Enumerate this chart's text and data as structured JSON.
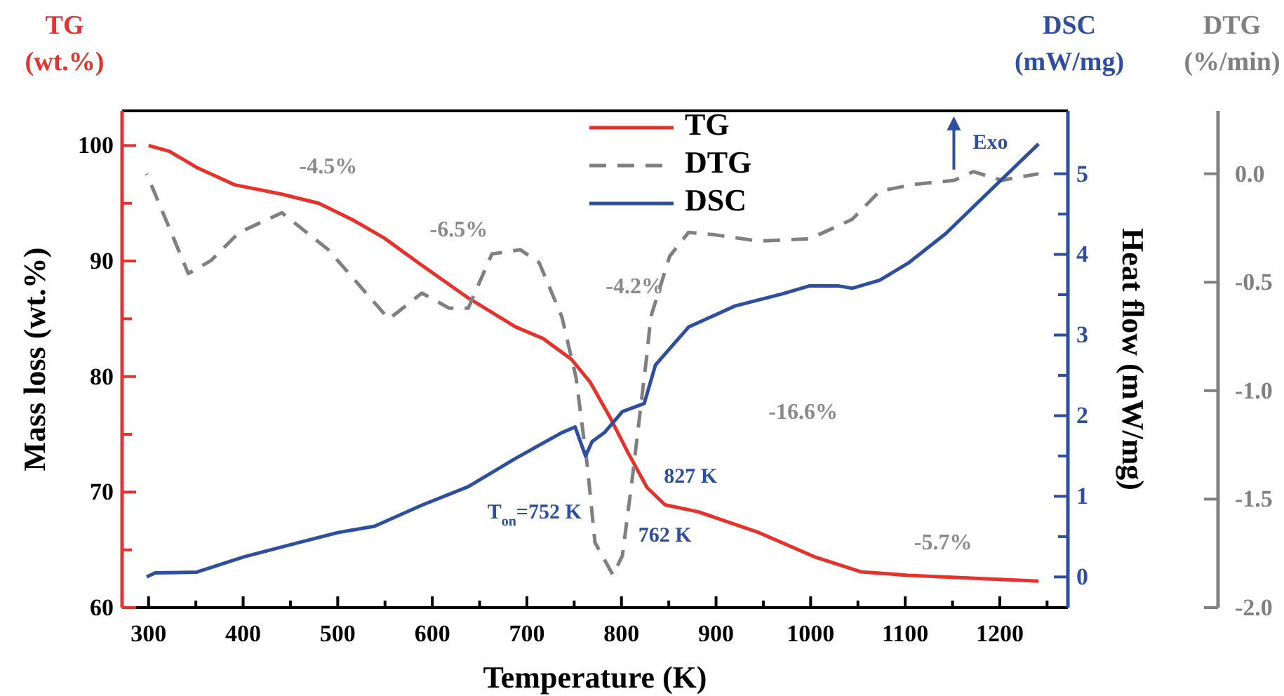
{
  "chart_data": {
    "type": "line",
    "xlabel": "Temperature (K)",
    "ylabel": "Mass loss (wt.%)",
    "y2label": "Heat flow (mW/mg)",
    "y3label": "DTG (%/min)",
    "xlim": [
      272,
      1272
    ],
    "xticks": [
      300,
      {
        "value": 350,
        "label": null
      },
      400,
      {
        "value": 450,
        "label": null
      },
      500,
      {
        "value": 550,
        "label": null
      },
      600,
      {
        "value": 650,
        "label": null
      },
      700,
      {
        "value": 750,
        "label": null
      },
      800,
      {
        "value": 850,
        "label": null
      },
      900,
      {
        "value": 950,
        "label": null
      },
      1000,
      {
        "value": 1050,
        "label": null
      },
      1100,
      {
        "value": 1150,
        "label": null
      },
      1200,
      {
        "value": 1250,
        "label": null
      }
    ],
    "ylim": [
      60,
      103
    ],
    "yticks": [
      60,
      {
        "value": 65,
        "label": null
      },
      70,
      {
        "value": 75,
        "label": null
      },
      80,
      {
        "value": 85,
        "label": null
      },
      90,
      {
        "value": 95,
        "label": null
      },
      100
    ],
    "y2lim": [
      -0.38,
      5.78
    ],
    "y2ticks": [
      0,
      {
        "value": 0.5,
        "label": null
      },
      1,
      {
        "value": 1.5,
        "label": null
      },
      2,
      {
        "value": 2.5,
        "label": null
      },
      3,
      {
        "value": 3.5,
        "label": null
      },
      4,
      {
        "value": 4.5,
        "label": null
      },
      5
    ],
    "y3lim": [
      -2.0,
      0.29
    ],
    "y3ticks": [
      {
        "value": 0,
        "label": "0.0"
      },
      -0.5,
      {
        "value": -1,
        "label": "-1.0"
      },
      -1.5,
      {
        "value": -2,
        "label": "-2.0"
      }
    ],
    "legend": "top",
    "series": [
      {
        "name": "TG",
        "color": "#e8312a",
        "axis": "y",
        "line_style": "solid",
        "x": [
          300,
          322,
          351,
          391,
          440,
          480,
          515,
          549,
          586,
          638,
          688,
          717,
          747,
          767,
          787,
          807,
          827,
          846,
          881,
          945,
          1004,
          1053,
          1103,
          1241
        ],
        "values": [
          100,
          99.5,
          98.1,
          96.6,
          95.8,
          95.0,
          93.6,
          92.0,
          89.8,
          86.8,
          84.3,
          83.3,
          81.5,
          79.5,
          76.6,
          73.4,
          70.4,
          68.9,
          68.3,
          66.5,
          64.4,
          63.1,
          62.8,
          62.3
        ]
      },
      {
        "name": "DTG",
        "color": "#808080",
        "axis": "y3",
        "line_style": "dashed",
        "x": [
          298,
          342,
          366,
          396,
          441,
          490,
          554,
          589,
          618,
          638,
          663,
          693,
          713,
          737,
          752,
          764,
          772,
          791,
          801,
          811,
          827,
          831,
          851,
          871,
          896,
          945,
          999,
          1044,
          1073,
          1108,
          1152,
          1172,
          1202,
          1241
        ],
        "values": [
          0.0,
          -0.46,
          -0.4,
          -0.27,
          -0.18,
          -0.35,
          -0.67,
          -0.55,
          -0.62,
          -0.62,
          -0.37,
          -0.35,
          -0.41,
          -0.66,
          -0.94,
          -1.35,
          -1.7,
          -1.85,
          -1.76,
          -1.42,
          -0.83,
          -0.66,
          -0.38,
          -0.27,
          -0.28,
          -0.31,
          -0.3,
          -0.21,
          -0.08,
          -0.05,
          -0.03,
          0.01,
          -0.03,
          0.0
        ]
      },
      {
        "name": "DSC",
        "color": "#2e4fa0",
        "axis": "y2",
        "line_style": "solid",
        "x": [
          298,
          307,
          351,
          401,
          450,
          500,
          539,
          589,
          638,
          688,
          737,
          751,
          762,
          769,
          782,
          801,
          824,
          836,
          871,
          920,
          970,
          999,
          1029,
          1044,
          1073,
          1103,
          1143,
          1202,
          1241
        ],
        "values": [
          0.0,
          0.05,
          0.06,
          0.25,
          0.4,
          0.55,
          0.63,
          0.89,
          1.12,
          1.47,
          1.79,
          1.86,
          1.5,
          1.68,
          1.79,
          2.05,
          2.15,
          2.63,
          3.1,
          3.36,
          3.51,
          3.61,
          3.61,
          3.58,
          3.68,
          3.89,
          4.26,
          4.93,
          5.37
        ]
      }
    ],
    "annotations": [
      "TG (wt.%)",
      "DSC (mW/mg)",
      "-4.5%",
      "-6.5%",
      "-4.2%",
      "-16.6%",
      "-5.7%",
      "T$_{on}$=752 K",
      "762 K",
      "827 K",
      "Exo"
    ]
  }
}
